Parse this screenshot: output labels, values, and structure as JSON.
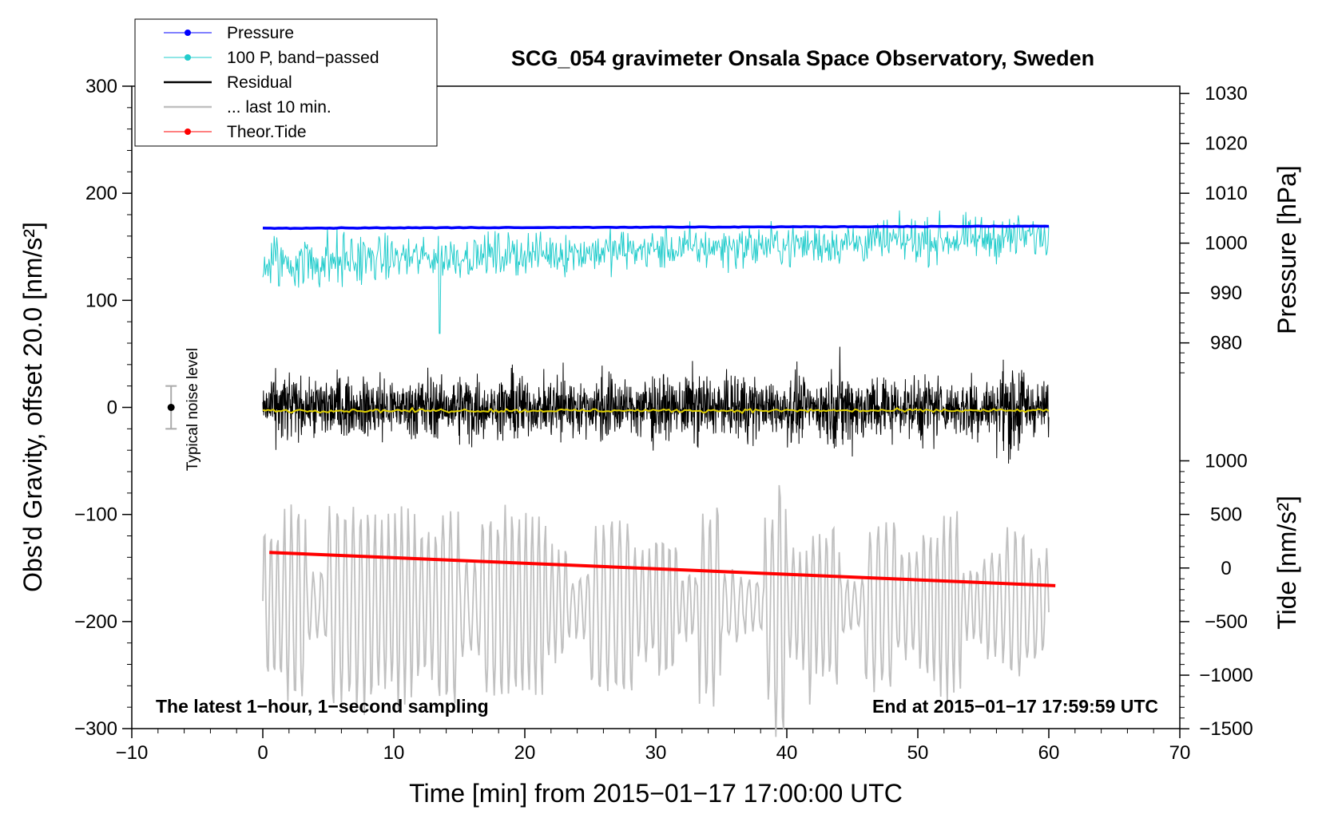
{
  "chart_data": {
    "type": "line",
    "title": "SCG_054 gravimeter Onsala Space Observatory, Sweden",
    "xlabel": "Time [min] from 2015−01−17 17:00:00 UTC",
    "ylabel_left": "Obs'd Gravity, offset 20.0 [nm/s²]",
    "ylabel_right_top": "Pressure [hPa]",
    "ylabel_right_bottom": "Tide [nm/s²]",
    "xlim": [
      -10,
      70
    ],
    "ylim": [
      -300,
      300
    ],
    "x_ticks": [
      "−10",
      "0",
      "10",
      "20",
      "30",
      "40",
      "50",
      "60",
      "70"
    ],
    "y_ticks_left": [
      "300",
      "200",
      "100",
      "0",
      "−100",
      "−200",
      "−300"
    ],
    "y_ticks_pressure": [
      "1030",
      "1020",
      "1010",
      "1000",
      "990",
      "980"
    ],
    "y_ticks_tide": [
      "1000",
      "500",
      "0",
      "−500",
      "−1000",
      "−1500"
    ],
    "pressure_axis": {
      "range_hpa": [
        980,
        1030
      ]
    },
    "tide_axis": {
      "range_nms2": [
        -1500,
        1000
      ]
    },
    "note_left": "The latest 1−hour, 1−second sampling",
    "note_right": "End at 2015−01−17 17:59:59 UTC",
    "noise_label": "Typical noise level",
    "noise_level": {
      "center": 0,
      "half_range": 20
    },
    "legend": [
      {
        "label": "Pressure",
        "color": "#0000ff",
        "marker": true
      },
      {
        "label": "100 P, band−passed",
        "color": "#22cccc",
        "marker": true
      },
      {
        "label": "Residual",
        "color": "#000000",
        "marker": false
      },
      {
        "label": "... last 10 min.",
        "color": "#c0c0c0",
        "marker": false
      },
      {
        "label": "Theor.Tide",
        "color": "#ff0000",
        "marker": true
      }
    ],
    "series": [
      {
        "name": "Pressure",
        "color": "#0000ff",
        "x_range": [
          0,
          60
        ],
        "hpa_start": 1003.0,
        "hpa_end": 1003.4
      },
      {
        "name": "100 P, band−passed",
        "color": "#22cccc",
        "x_range": [
          0,
          60
        ],
        "base": 155,
        "amplitude": 20,
        "min_dip": 69
      },
      {
        "name": "Residual",
        "color": "#000000",
        "x_range": [
          0,
          60
        ],
        "mean": 0,
        "amplitude": 75
      },
      {
        "name": "Residual smoothed",
        "color": "#e0d000",
        "x_range": [
          0,
          60
        ],
        "mean": -3
      },
      {
        "name": "... last 10 min.",
        "color": "#c0c0c0",
        "x_range": [
          0,
          60
        ],
        "center": -185,
        "amplitude": 95
      },
      {
        "name": "Theor.Tide",
        "color": "#ff0000",
        "x_range": [
          0.5,
          60.5
        ],
        "tide_start": 145,
        "tide_end": -165
      }
    ]
  }
}
